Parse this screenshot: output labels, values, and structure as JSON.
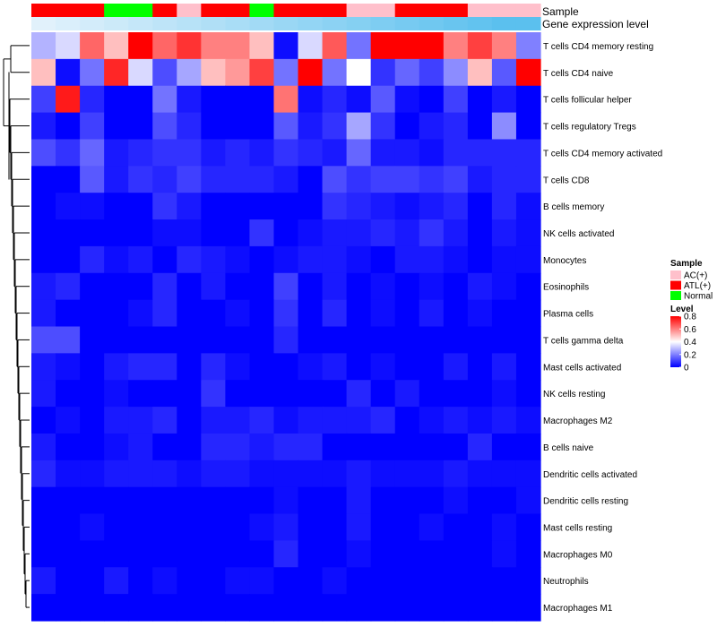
{
  "chart_data": {
    "type": "heatmap",
    "row_labels": [
      "T cells CD4 memory resting",
      "T cells CD4 naive",
      "T cells follicular helper",
      "T cells regulatory  Tregs",
      "T cells CD4 memory activated",
      "T cells CD8",
      "B cells memory",
      "NK cells activated",
      "Monocytes",
      "Eosinophils",
      "Plasma cells",
      "T cells gamma delta",
      "Mast cells activated",
      "NK cells resting",
      "Macrophages M2",
      "B cells naive",
      "Dendritic cells activated",
      "Dendritic cells resting",
      "Mast cells resting",
      "Macrophages M0",
      "Neutrophils",
      "Macrophages M1"
    ],
    "annotation_labels": {
      "sample": "Sample",
      "expression": "Gene expression level"
    },
    "sample_groups": [
      "ATL(+)",
      "ATL(+)",
      "ATL(+)",
      "Normal",
      "Normal",
      "ATL(+)",
      "AC(+)",
      "ATL(+)",
      "ATL(+)",
      "Normal",
      "ATL(+)",
      "ATL(+)",
      "ATL(+)",
      "AC(+)",
      "AC(+)",
      "ATL(+)",
      "ATL(+)",
      "ATL(+)",
      "AC(+)",
      "AC(+)",
      "AC(+)"
    ],
    "expression_levels": [
      0.05,
      0.1,
      0.15,
      0.2,
      0.25,
      0.3,
      0.35,
      0.4,
      0.45,
      0.5,
      0.55,
      0.6,
      0.65,
      0.7,
      0.75,
      0.8,
      0.85,
      0.9,
      0.95,
      1.0,
      1.0
    ],
    "values": [
      [
        0.28,
        0.34,
        0.64,
        0.5,
        0.8,
        0.64,
        0.72,
        0.6,
        0.6,
        0.5,
        0.02,
        0.34,
        0.66,
        0.18,
        0.8,
        0.8,
        0.8,
        0.6,
        0.7,
        0.6,
        0.2
      ],
      [
        0.5,
        0.02,
        0.18,
        0.74,
        0.34,
        0.12,
        0.26,
        0.5,
        0.56,
        0.7,
        0.18,
        0.8,
        0.18,
        0.4,
        0.08,
        0.16,
        0.1,
        0.22,
        0.5,
        0.14,
        0.8
      ],
      [
        0.1,
        0.76,
        0.06,
        0.0,
        0.0,
        0.18,
        0.04,
        0.0,
        0.0,
        0.0,
        0.62,
        0.02,
        0.06,
        0.02,
        0.14,
        0.02,
        0.0,
        0.1,
        0.0,
        0.04,
        0.0
      ],
      [
        0.04,
        0.0,
        0.1,
        0.0,
        0.0,
        0.12,
        0.06,
        0.0,
        0.0,
        0.0,
        0.14,
        0.04,
        0.08,
        0.26,
        0.08,
        0.0,
        0.04,
        0.06,
        0.0,
        0.22,
        0.0
      ],
      [
        0.12,
        0.08,
        0.16,
        0.04,
        0.06,
        0.08,
        0.08,
        0.04,
        0.06,
        0.04,
        0.08,
        0.06,
        0.04,
        0.16,
        0.04,
        0.04,
        0.02,
        0.06,
        0.06,
        0.06,
        0.06
      ],
      [
        0.0,
        0.0,
        0.14,
        0.04,
        0.08,
        0.06,
        0.1,
        0.06,
        0.06,
        0.06,
        0.04,
        0.0,
        0.12,
        0.08,
        0.1,
        0.1,
        0.08,
        0.1,
        0.04,
        0.06,
        0.06
      ],
      [
        0.0,
        0.02,
        0.02,
        0.0,
        0.0,
        0.08,
        0.04,
        0.0,
        0.0,
        0.0,
        0.0,
        0.0,
        0.08,
        0.06,
        0.04,
        0.02,
        0.04,
        0.06,
        0.0,
        0.06,
        0.02
      ],
      [
        0.0,
        0.0,
        0.0,
        0.0,
        0.0,
        0.02,
        0.02,
        0.0,
        0.0,
        0.08,
        0.0,
        0.02,
        0.04,
        0.04,
        0.06,
        0.04,
        0.08,
        0.04,
        0.0,
        0.04,
        0.02
      ],
      [
        0.0,
        0.0,
        0.06,
        0.02,
        0.04,
        0.0,
        0.06,
        0.04,
        0.02,
        0.0,
        0.02,
        0.04,
        0.04,
        0.02,
        0.0,
        0.04,
        0.04,
        0.02,
        0.0,
        0.02,
        0.02
      ],
      [
        0.04,
        0.06,
        0.0,
        0.0,
        0.0,
        0.06,
        0.0,
        0.04,
        0.0,
        0.0,
        0.1,
        0.0,
        0.04,
        0.0,
        0.02,
        0.0,
        0.02,
        0.0,
        0.04,
        0.02,
        0.0
      ],
      [
        0.04,
        0.0,
        0.0,
        0.0,
        0.02,
        0.06,
        0.0,
        0.0,
        0.02,
        0.0,
        0.08,
        0.0,
        0.06,
        0.0,
        0.02,
        0.0,
        0.04,
        0.0,
        0.02,
        0.0,
        0.0
      ],
      [
        0.12,
        0.12,
        0.0,
        0.0,
        0.0,
        0.0,
        0.0,
        0.0,
        0.0,
        0.0,
        0.06,
        0.0,
        0.0,
        0.0,
        0.0,
        0.0,
        0.0,
        0.0,
        0.0,
        0.0,
        0.0
      ],
      [
        0.04,
        0.02,
        0.0,
        0.04,
        0.06,
        0.06,
        0.0,
        0.06,
        0.02,
        0.0,
        0.0,
        0.02,
        0.04,
        0.0,
        0.02,
        0.0,
        0.0,
        0.04,
        0.0,
        0.04,
        0.0
      ],
      [
        0.04,
        0.0,
        0.0,
        0.02,
        0.0,
        0.0,
        0.0,
        0.08,
        0.0,
        0.0,
        0.0,
        0.0,
        0.0,
        0.06,
        0.0,
        0.04,
        0.0,
        0.0,
        0.0,
        0.02,
        0.0
      ],
      [
        0.0,
        0.02,
        0.0,
        0.04,
        0.04,
        0.06,
        0.0,
        0.04,
        0.04,
        0.06,
        0.02,
        0.04,
        0.04,
        0.04,
        0.06,
        0.0,
        0.02,
        0.04,
        0.02,
        0.04,
        0.02
      ],
      [
        0.04,
        0.0,
        0.0,
        0.02,
        0.04,
        0.0,
        0.0,
        0.06,
        0.06,
        0.04,
        0.06,
        0.06,
        0.0,
        0.0,
        0.0,
        0.0,
        0.0,
        0.0,
        0.06,
        0.0,
        0.0
      ],
      [
        0.06,
        0.02,
        0.02,
        0.04,
        0.04,
        0.04,
        0.02,
        0.04,
        0.04,
        0.02,
        0.02,
        0.02,
        0.02,
        0.04,
        0.02,
        0.02,
        0.02,
        0.04,
        0.02,
        0.02,
        0.02
      ],
      [
        0.0,
        0.0,
        0.0,
        0.0,
        0.0,
        0.0,
        0.0,
        0.0,
        0.0,
        0.0,
        0.02,
        0.0,
        0.0,
        0.04,
        0.0,
        0.0,
        0.0,
        0.02,
        0.0,
        0.0,
        0.02
      ],
      [
        0.0,
        0.0,
        0.02,
        0.0,
        0.0,
        0.0,
        0.0,
        0.0,
        0.0,
        0.02,
        0.04,
        0.0,
        0.0,
        0.04,
        0.0,
        0.0,
        0.02,
        0.0,
        0.0,
        0.02,
        0.0
      ],
      [
        0.0,
        0.0,
        0.0,
        0.0,
        0.0,
        0.0,
        0.0,
        0.0,
        0.0,
        0.0,
        0.06,
        0.0,
        0.0,
        0.02,
        0.0,
        0.0,
        0.0,
        0.0,
        0.0,
        0.02,
        0.0
      ],
      [
        0.04,
        0.0,
        0.0,
        0.04,
        0.0,
        0.02,
        0.0,
        0.0,
        0.02,
        0.02,
        0.0,
        0.0,
        0.02,
        0.0,
        0.0,
        0.0,
        0.0,
        0.0,
        0.0,
        0.0,
        0.0
      ],
      [
        0.0,
        0.0,
        0.0,
        0.0,
        0.0,
        0.0,
        0.0,
        0.0,
        0.0,
        0.0,
        0.0,
        0.0,
        0.0,
        0.0,
        0.0,
        0.0,
        0.0,
        0.0,
        0.0,
        0.0,
        0.0
      ]
    ],
    "legend": {
      "sample": {
        "title": "Sample",
        "items": [
          "AC(+)",
          "ATL(+)",
          "Normal"
        ],
        "colors": [
          "#ffc0cb",
          "#ff0000",
          "#00ff00"
        ]
      },
      "level": {
        "title": "Level",
        "ticks": [
          "0.8",
          "0.6",
          "0.4",
          "0.2",
          "0"
        ],
        "tick_values": [
          0.8,
          0.6,
          0.4,
          0.2,
          0
        ],
        "range": [
          0,
          0.8
        ]
      }
    },
    "colors": {
      "low": "#0000ff",
      "mid": "#ffffff",
      "high": "#ff0000",
      "expr_low": "#e8f4fc",
      "expr_high": "#5bc0ee"
    }
  }
}
